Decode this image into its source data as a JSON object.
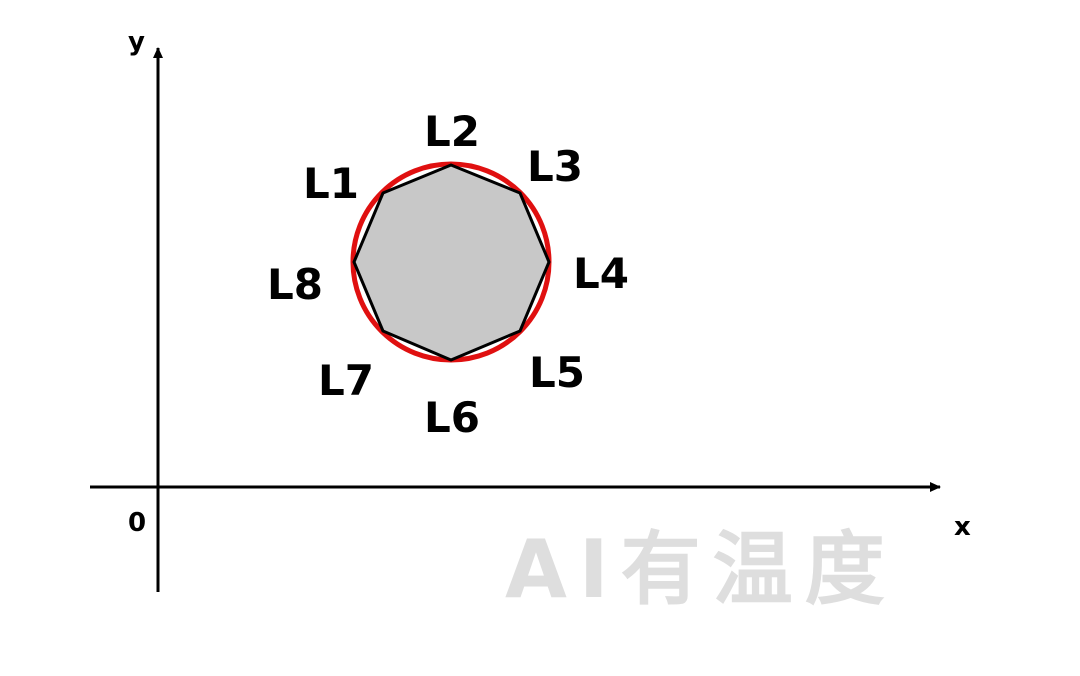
{
  "axes": {
    "x_label": "x",
    "y_label": "y",
    "origin_label": "0"
  },
  "segments": {
    "l1": "L1",
    "l2": "L2",
    "l3": "L3",
    "l4": "L4",
    "l5": "L5",
    "l6": "L6",
    "l7": "L7",
    "l8": "L8"
  },
  "watermark": {
    "text": "AI有温度"
  },
  "colors": {
    "circle_stroke": "#e01010",
    "octagon_fill": "#c8c8c8",
    "octagon_stroke": "#000000",
    "axis": "#000000",
    "watermark": "#dedede"
  }
}
